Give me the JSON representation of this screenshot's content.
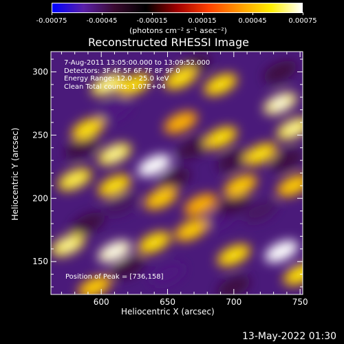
{
  "colorbar": {
    "ticks": [
      "-0.00075",
      "-0.00045",
      "-0.00015",
      "0.00015",
      "0.00045",
      "0.00075"
    ],
    "units_label": "(photons cm⁻² s⁻¹ asec⁻²)",
    "colors": [
      "#0000ff",
      "#5a20a8",
      "#3a0a30",
      "#000000",
      "#a00000",
      "#ff4000",
      "#ff9a00",
      "#ffee00",
      "#ffffff"
    ]
  },
  "chart_data": {
    "type": "heatmap",
    "title": "Reconstructed RHESSI Image",
    "xlabel": "Heliocentric X (arcsec)",
    "ylabel": "Heliocentric Y (arcsec)",
    "xlim": [
      562,
      752
    ],
    "ylim": [
      124,
      316
    ],
    "xticks": [
      600,
      650,
      700,
      750
    ],
    "yticks": [
      150,
      200,
      250,
      300
    ],
    "color_range": [
      -0.00075,
      0.00075
    ],
    "annotations": [
      "7-Aug-2011 13:05:00.000 to 13:09:52.000",
      "Detectors: 3F 4F 5F 6F 7F 8F 9F 0",
      "Energy Range: 12.0 - 25.0 keV",
      "Clean    Total counts: 1.07E+04",
      "Position of Peak = [736,158]"
    ],
    "peak": [
      736,
      158
    ],
    "bright_blobs": [
      {
        "x": 640,
        "y": 226,
        "v": 0.00075
      },
      {
        "x": 610,
        "y": 235,
        "v": 0.0006
      },
      {
        "x": 590,
        "y": 255,
        "v": 0.0005
      },
      {
        "x": 605,
        "y": 290,
        "v": 0.0006
      },
      {
        "x": 625,
        "y": 290,
        "v": 0.0005
      },
      {
        "x": 660,
        "y": 295,
        "v": 0.0005
      },
      {
        "x": 690,
        "y": 290,
        "v": 0.0005
      },
      {
        "x": 735,
        "y": 275,
        "v": 0.00065
      },
      {
        "x": 745,
        "y": 255,
        "v": 0.0006
      },
      {
        "x": 720,
        "y": 235,
        "v": 0.0005
      },
      {
        "x": 690,
        "y": 248,
        "v": 0.0005
      },
      {
        "x": 660,
        "y": 260,
        "v": 0.0004
      },
      {
        "x": 580,
        "y": 215,
        "v": 0.00055
      },
      {
        "x": 610,
        "y": 210,
        "v": 0.0005
      },
      {
        "x": 645,
        "y": 200,
        "v": 0.00045
      },
      {
        "x": 675,
        "y": 195,
        "v": 0.0004
      },
      {
        "x": 705,
        "y": 210,
        "v": 0.00045
      },
      {
        "x": 745,
        "y": 210,
        "v": 0.00045
      },
      {
        "x": 575,
        "y": 163,
        "v": 0.0006
      },
      {
        "x": 610,
        "y": 158,
        "v": 0.0007
      },
      {
        "x": 640,
        "y": 165,
        "v": 0.0005
      },
      {
        "x": 668,
        "y": 175,
        "v": 0.00045
      },
      {
        "x": 700,
        "y": 155,
        "v": 0.0005
      },
      {
        "x": 736,
        "y": 158,
        "v": 0.00075
      },
      {
        "x": 750,
        "y": 140,
        "v": 0.0005
      },
      {
        "x": 595,
        "y": 130,
        "v": 0.00045
      }
    ],
    "dark_blobs": [
      {
        "x": 610,
        "y": 270,
        "v": -0.0005
      },
      {
        "x": 670,
        "y": 240,
        "v": -0.0004
      },
      {
        "x": 700,
        "y": 230,
        "v": -0.0004
      },
      {
        "x": 615,
        "y": 195,
        "v": -0.00045
      },
      {
        "x": 655,
        "y": 215,
        "v": -0.0004
      },
      {
        "x": 690,
        "y": 185,
        "v": -0.0005
      },
      {
        "x": 720,
        "y": 190,
        "v": -0.00045
      },
      {
        "x": 590,
        "y": 180,
        "v": -0.0004
      },
      {
        "x": 700,
        "y": 195,
        "v": -0.0004
      },
      {
        "x": 650,
        "y": 140,
        "v": -0.0005
      },
      {
        "x": 700,
        "y": 130,
        "v": -0.0004
      },
      {
        "x": 620,
        "y": 145,
        "v": -0.0004
      },
      {
        "x": 740,
        "y": 230,
        "v": -0.0004
      },
      {
        "x": 670,
        "y": 305,
        "v": -0.0004
      },
      {
        "x": 735,
        "y": 300,
        "v": -0.0004
      },
      {
        "x": 585,
        "y": 240,
        "v": -0.0004
      }
    ]
  },
  "footer": {
    "timestamp": "13-May-2022 01:30"
  }
}
